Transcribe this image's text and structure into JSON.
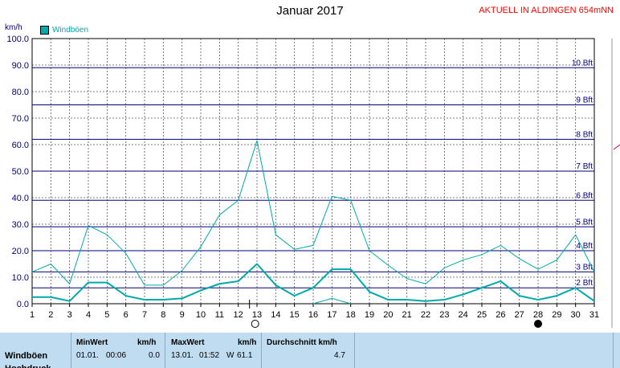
{
  "chart_data": {
    "type": "line",
    "title": "Januar 2017",
    "station": "AKTUELL IN ALDINGEN 654mNN",
    "ylabel": "km/h",
    "ylim": [
      0,
      100
    ],
    "yticks": [
      "0.0",
      "10.0",
      "20.0",
      "30.0",
      "40.0",
      "50.0",
      "60.0",
      "70.0",
      "80.0",
      "90.0",
      "100.0"
    ],
    "x": [
      "1",
      "2",
      "3",
      "4",
      "5",
      "6",
      "7",
      "8",
      "9",
      "10",
      "11",
      "12",
      "13",
      "14",
      "15",
      "16",
      "17",
      "18",
      "19",
      "20",
      "21",
      "22",
      "23",
      "24",
      "25",
      "26",
      "27",
      "28",
      "29",
      "30",
      "31"
    ],
    "grid": true,
    "legend": "top-left",
    "series": [
      {
        "name": "Windböen",
        "color": "#00aaaa",
        "values": [
          12,
          15,
          7.5,
          29.5,
          26,
          19,
          7,
          7,
          12.5,
          21.5,
          33.5,
          39,
          61.5,
          26,
          20.5,
          22,
          40.5,
          39,
          20,
          14.5,
          9.5,
          7.5,
          13.5,
          16.5,
          18.5,
          22,
          17,
          13,
          16.5,
          26,
          12
        ]
      },
      {
        "color": "#00aaaa",
        "values": [
          2.5,
          2.5,
          1,
          8,
          8,
          3,
          1.5,
          1.5,
          2,
          5,
          7.5,
          8.5,
          15,
          7,
          3,
          6,
          13,
          13,
          4.5,
          1.5,
          1.5,
          1,
          1.5,
          3.5,
          6,
          8.5,
          3,
          1.5,
          3,
          6,
          1
        ]
      },
      {
        "color": "#00aaaa",
        "values": [
          null,
          null,
          null,
          null,
          null,
          null,
          null,
          null,
          null,
          null,
          null,
          null,
          null,
          null,
          null,
          0,
          2,
          0,
          null,
          null,
          null,
          null,
          null,
          null,
          null,
          null,
          null,
          null,
          null,
          null,
          null
        ]
      }
    ],
    "beaufort": [
      {
        "label": "2 Bft",
        "value": 6
      },
      {
        "label": "3 Bft",
        "value": 12
      },
      {
        "label": "4 Bft",
        "value": 20
      },
      {
        "label": "5 Bft",
        "value": 29
      },
      {
        "label": "6 Bft",
        "value": 39
      },
      {
        "label": "7 Bft",
        "value": 50
      },
      {
        "label": "8 Bft",
        "value": 62
      },
      {
        "label": "9 Bft",
        "value": 75
      },
      {
        "label": "10 Bft",
        "value": 89
      }
    ]
  },
  "colors": {
    "beaufort_line": "#000080",
    "axis_text": "#000080",
    "series": "#00aaaa",
    "panel": "#c0dcf0"
  },
  "stats": {
    "row_label": "Windböen",
    "row_label_2": "Hochdruck",
    "min_header": "MinWert",
    "min_unit": "km/h",
    "min_date": "01.01.",
    "min_time": "00:06",
    "min_value": "0.0",
    "max_header": "MaxWert",
    "max_unit": "km/h",
    "max_date": "13.01.",
    "max_time": "01:52",
    "max_dir": "W",
    "max_value": "61.1",
    "avg_header": "Durchschnitt km/h",
    "avg_value": "4.7"
  }
}
